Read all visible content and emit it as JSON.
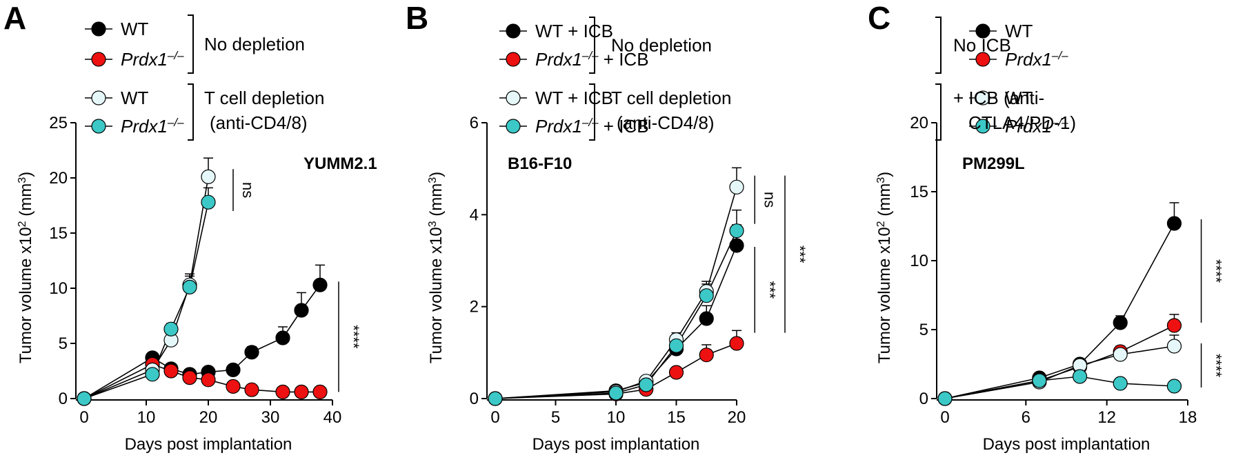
{
  "colors": {
    "wt": "#000000",
    "ko": "#ee1111",
    "wt_dep": "#e6f7f9",
    "ko_dep": "#3cc8c6",
    "stroke": "#000000"
  },
  "chart_data": [
    {
      "type": "line",
      "panel_letter": "A",
      "cell_line": "YUMM2.1",
      "xlabel": "Days post implantation",
      "ylabel": "Tumor volume x10² (mm³)",
      "xlim": [
        0,
        40
      ],
      "ylim": [
        0,
        25
      ],
      "xticks": [
        0,
        10,
        20,
        30,
        40
      ],
      "yticks": [
        0,
        5,
        10,
        15,
        20,
        25
      ],
      "legend_groups": [
        {
          "bracket_label": "No depletion",
          "entries": [
            "WT",
            "Prdx1–/–"
          ]
        },
        {
          "bracket_label": "T cell depletion (anti-CD4/8)",
          "entries": [
            "WT",
            "Prdx1–/–"
          ]
        }
      ],
      "series": [
        {
          "name": "WT",
          "group": "No depletion",
          "color_key": "wt",
          "x": [
            0,
            11,
            14,
            17,
            20,
            24,
            27,
            32,
            35,
            38
          ],
          "y": [
            0,
            3.7,
            2.7,
            2.2,
            2.4,
            2.6,
            4.2,
            5.5,
            8.0,
            10.3
          ],
          "err": [
            0,
            0.4,
            0.3,
            0.3,
            0.3,
            0.4,
            0.5,
            1.0,
            1.6,
            1.8
          ]
        },
        {
          "name": "Prdx1–/–",
          "group": "No depletion",
          "color_key": "ko",
          "x": [
            0,
            11,
            14,
            17,
            20,
            24,
            27,
            32,
            35,
            38
          ],
          "y": [
            0,
            3.1,
            2.5,
            1.9,
            1.7,
            1.1,
            0.8,
            0.6,
            0.6,
            0.6
          ],
          "err": [
            0,
            0.3,
            0.3,
            0.3,
            0.3,
            0.2,
            0.2,
            0.1,
            0.1,
            0.1
          ]
        },
        {
          "name": "WT",
          "group": "T cell depletion (anti-CD4/8)",
          "color_key": "wt_dep",
          "x": [
            0,
            11,
            14,
            17,
            20
          ],
          "y": [
            0,
            2.6,
            5.3,
            10.3,
            20.1
          ],
          "err": [
            0,
            0.3,
            0.5,
            1.0,
            1.7
          ]
        },
        {
          "name": "Prdx1–/–",
          "group": "T cell depletion (anti-CD4/8)",
          "color_key": "ko_dep",
          "x": [
            0,
            11,
            14,
            17,
            20
          ],
          "y": [
            0,
            2.2,
            6.3,
            10.1,
            17.8
          ],
          "err": [
            0,
            0.3,
            0.5,
            1.0,
            1.3
          ]
        }
      ],
      "significance": [
        {
          "label": "ns",
          "y_range": [
            17.0,
            20.8
          ],
          "x": 24,
          "rotate": true
        },
        {
          "label": "****",
          "y_range": [
            0.6,
            10.6
          ],
          "x": 41,
          "rotate": true
        }
      ]
    },
    {
      "type": "line",
      "panel_letter": "B",
      "cell_line": "B16-F10",
      "xlabel": "Days post implantation",
      "ylabel": "Tumor volume x10³ (mm³)",
      "xlim": [
        0,
        20
      ],
      "ylim": [
        0,
        6
      ],
      "xticks": [
        0,
        5,
        10,
        15,
        20
      ],
      "yticks": [
        0,
        2,
        4,
        6
      ],
      "legend_groups": [
        {
          "bracket_label": "No depletion",
          "entries": [
            "WT + ICB",
            "Prdx1–/– + ICB"
          ]
        },
        {
          "bracket_label": "T cell depletion (anti-CD4/8)",
          "entries": [
            "WT + ICB",
            "Prdx1–/– + ICB"
          ]
        }
      ],
      "series": [
        {
          "name": "WT + ICB",
          "group": "No depletion",
          "color_key": "wt",
          "x": [
            0,
            10,
            12.5,
            15,
            17.5,
            20
          ],
          "y": [
            0,
            0.17,
            0.35,
            1.08,
            1.74,
            3.33
          ],
          "err": [
            0,
            0.03,
            0.06,
            0.15,
            0.28,
            0.45
          ]
        },
        {
          "name": "Prdx1–/– + ICB",
          "group": "No depletion",
          "color_key": "ko",
          "x": [
            0,
            10,
            12.5,
            15,
            17.5,
            20
          ],
          "y": [
            0,
            0.1,
            0.2,
            0.57,
            0.95,
            1.2
          ],
          "err": [
            0,
            0.02,
            0.04,
            0.1,
            0.22,
            0.28
          ]
        },
        {
          "name": "WT + ICB",
          "group": "T cell depletion (anti-CD4/8)",
          "color_key": "wt_dep",
          "x": [
            0,
            10,
            12.5,
            15,
            17.5,
            20
          ],
          "y": [
            0,
            0.15,
            0.38,
            1.28,
            2.33,
            4.6
          ],
          "err": [
            0,
            0.03,
            0.06,
            0.15,
            0.22,
            0.42
          ]
        },
        {
          "name": "Prdx1–/– + ICB",
          "group": "T cell depletion (anti-CD4/8)",
          "color_key": "ko_dep",
          "x": [
            0,
            10,
            12.5,
            15,
            17.5,
            20
          ],
          "y": [
            0,
            0.12,
            0.3,
            1.15,
            2.24,
            3.65
          ],
          "err": [
            0,
            0.03,
            0.05,
            0.15,
            0.25,
            0.45
          ]
        }
      ],
      "significance": [
        {
          "label": "ns",
          "y_range": [
            3.8,
            4.85
          ],
          "x": 21.5,
          "rotate": true
        },
        {
          "label": "***",
          "y_range": [
            1.43,
            3.3
          ],
          "x": 21.5,
          "rotate": true
        },
        {
          "label": "***",
          "y_range": [
            1.43,
            4.85
          ],
          "x": 24,
          "rotate": true
        }
      ]
    },
    {
      "type": "line",
      "panel_letter": "C",
      "cell_line": "PM299L",
      "xlabel": "Days post implantation",
      "ylabel": "Tumor volume x10² (mm³)",
      "xlim": [
        0,
        18
      ],
      "ylim": [
        0,
        20
      ],
      "xticks": [
        0,
        6,
        12,
        18
      ],
      "yticks": [
        0,
        5,
        10,
        15,
        20
      ],
      "legend_groups": [
        {
          "bracket_label": "No ICB",
          "entries": [
            "WT",
            "Prdx1–/–"
          ]
        },
        {
          "bracket_label": "+ ICB (anti-CTLA4/PD-1)",
          "entries": [
            "WT",
            "Prdx1–/–"
          ]
        }
      ],
      "series": [
        {
          "name": "WT",
          "group": "No ICB",
          "color_key": "wt",
          "x": [
            0,
            7,
            10,
            13,
            17
          ],
          "y": [
            0,
            1.5,
            2.5,
            5.5,
            12.7
          ],
          "err": [
            0,
            0.2,
            0.3,
            0.5,
            1.5
          ]
        },
        {
          "name": "Prdx1–/–",
          "group": "No ICB",
          "color_key": "ko",
          "x": [
            0,
            7,
            10,
            13,
            17
          ],
          "y": [
            0,
            1.3,
            2.3,
            3.4,
            5.3
          ],
          "err": [
            0,
            0.2,
            0.3,
            0.4,
            0.8
          ]
        },
        {
          "name": "WT",
          "group": "+ ICB (anti-CTLA4/PD-1)",
          "color_key": "wt_dep",
          "x": [
            0,
            7,
            10,
            13,
            17
          ],
          "y": [
            0,
            1.2,
            2.4,
            3.2,
            3.8
          ],
          "err": [
            0,
            0.2,
            0.3,
            0.4,
            0.8
          ]
        },
        {
          "name": "Prdx1–/–",
          "group": "+ ICB (anti-CTLA4/PD-1)",
          "color_key": "ko_dep",
          "x": [
            0,
            7,
            10,
            13,
            17
          ],
          "y": [
            0,
            1.3,
            1.6,
            1.1,
            0.9
          ],
          "err": [
            0,
            0.15,
            0.2,
            0.15,
            0.15
          ]
        }
      ],
      "significance": [
        {
          "label": "****",
          "y_range": [
            5.5,
            13.0
          ],
          "x": 19,
          "rotate": true
        },
        {
          "label": "****",
          "y_range": [
            0.8,
            4.0
          ],
          "x": 19,
          "rotate": true
        }
      ]
    }
  ]
}
